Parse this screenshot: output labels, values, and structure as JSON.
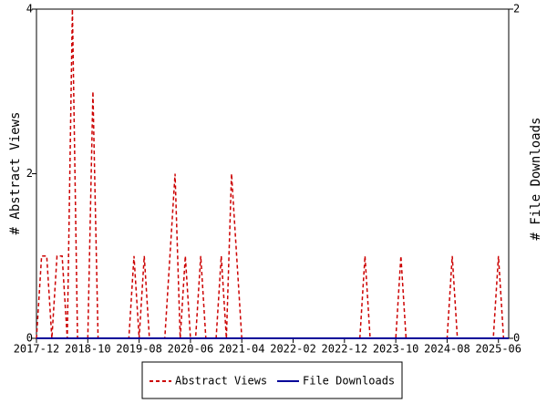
{
  "chart_data": {
    "type": "line",
    "x": [
      "2017-12",
      "2018-01",
      "2018-02",
      "2018-03",
      "2018-04",
      "2018-05",
      "2018-06",
      "2018-07",
      "2018-08",
      "2018-09",
      "2018-10",
      "2018-11",
      "2018-12",
      "2019-01",
      "2019-02",
      "2019-03",
      "2019-04",
      "2019-05",
      "2019-06",
      "2019-07",
      "2019-08",
      "2019-09",
      "2019-10",
      "2019-11",
      "2019-12",
      "2020-01",
      "2020-02",
      "2020-03",
      "2020-04",
      "2020-05",
      "2020-06",
      "2020-07",
      "2020-08",
      "2020-09",
      "2020-10",
      "2020-11",
      "2020-12",
      "2021-01",
      "2021-02",
      "2021-03",
      "2021-04",
      "2021-05",
      "2021-06",
      "2021-07",
      "2021-08",
      "2021-09",
      "2021-10",
      "2021-11",
      "2021-12",
      "2022-01",
      "2022-02",
      "2022-03",
      "2022-04",
      "2022-05",
      "2022-06",
      "2022-07",
      "2022-08",
      "2022-09",
      "2022-10",
      "2022-11",
      "2022-12",
      "2023-01",
      "2023-02",
      "2023-03",
      "2023-04",
      "2023-05",
      "2023-06",
      "2023-07",
      "2023-08",
      "2023-09",
      "2023-10",
      "2023-11",
      "2023-12",
      "2024-01",
      "2024-02",
      "2024-03",
      "2024-04",
      "2024-05",
      "2024-06",
      "2024-07",
      "2024-08",
      "2024-09",
      "2024-10",
      "2024-11",
      "2024-12",
      "2025-01",
      "2025-02",
      "2025-03",
      "2025-04",
      "2025-05",
      "2025-06",
      "2025-07",
      "2025-08"
    ],
    "xticks": [
      "2017-12",
      "2018-10",
      "2019-08",
      "2020-06",
      "2021-04",
      "2022-02",
      "2022-12",
      "2023-10",
      "2024-08",
      "2025-06"
    ],
    "y_label": "# Abstract Views",
    "y2_label": "# File Downloads",
    "ylim": [
      0,
      4
    ],
    "yticks": [
      0,
      2,
      4
    ],
    "y2lim": [
      0,
      2
    ],
    "y2ticks": [
      0,
      2
    ],
    "series": [
      {
        "name": "Abstract Views",
        "color": "#cc0000",
        "line_style": "dashed",
        "values": [
          0,
          1,
          1,
          0,
          1,
          1,
          0,
          4,
          0,
          0,
          0,
          3,
          0,
          0,
          0,
          0,
          0,
          0,
          0,
          1,
          0,
          1,
          0,
          0,
          0,
          0,
          1,
          2,
          0,
          1,
          0,
          0,
          1,
          0,
          0,
          0,
          1,
          0,
          2,
          1,
          0,
          0,
          0,
          0,
          0,
          0,
          0,
          0,
          0,
          0,
          0,
          0,
          0,
          0,
          0,
          0,
          0,
          0,
          0,
          0,
          0,
          0,
          0,
          0,
          1,
          0,
          0,
          0,
          0,
          0,
          0,
          1,
          0,
          0,
          0,
          0,
          0,
          0,
          0,
          0,
          0,
          1,
          0,
          0,
          0,
          0,
          0,
          0,
          0,
          0,
          1,
          0,
          0
        ]
      },
      {
        "name": "File Downloads",
        "color": "#000099",
        "line_style": "solid",
        "axis": "y2",
        "values": [
          0,
          0,
          0,
          0,
          0,
          0,
          0,
          0,
          0,
          0,
          0,
          0,
          0,
          0,
          0,
          0,
          0,
          0,
          0,
          0,
          0,
          0,
          0,
          0,
          0,
          0,
          0,
          0,
          0,
          0,
          0,
          0,
          0,
          0,
          0,
          0,
          0,
          0,
          0,
          0,
          0,
          0,
          0,
          0,
          0,
          0,
          0,
          0,
          0,
          0,
          0,
          0,
          0,
          0,
          0,
          0,
          0,
          0,
          0,
          0,
          0,
          0,
          0,
          0,
          0,
          0,
          0,
          0,
          0,
          0,
          0,
          0,
          0,
          0,
          0,
          0,
          0,
          0,
          0,
          0,
          0,
          0,
          0,
          0,
          0,
          0,
          0,
          0,
          0,
          0,
          0,
          0,
          0
        ]
      }
    ]
  }
}
